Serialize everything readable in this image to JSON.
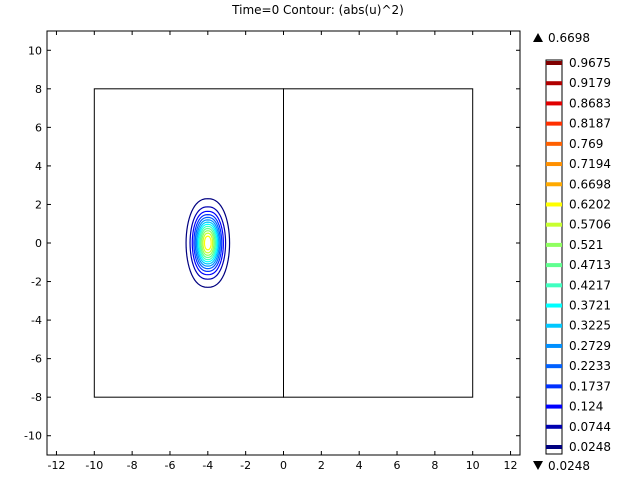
{
  "title": "Time=0   Contour: (abs(u)^2)",
  "max_marker": "0.6698",
  "min_marker": "0.0248",
  "chart_data": {
    "type": "contour",
    "title": "Time=0   Contour: (abs(u)^2)",
    "xlim": [
      -12.5,
      12.5
    ],
    "ylim": [
      -11,
      11
    ],
    "x_ticks": [
      -12,
      -10,
      -8,
      -6,
      -4,
      -2,
      0,
      2,
      4,
      6,
      8,
      10,
      12
    ],
    "y_ticks": [
      10,
      8,
      6,
      4,
      2,
      0,
      -2,
      -4,
      -6,
      -8,
      -10
    ],
    "domain_rectangles": [
      {
        "x": [
          -10,
          0
        ],
        "y": [
          -8,
          8
        ]
      },
      {
        "x": [
          0,
          10
        ],
        "y": [
          -8,
          8
        ]
      }
    ],
    "blob": {
      "center": [
        -4,
        0
      ],
      "half_width": 1.15,
      "half_height": 2.3
    },
    "max_value": 0.6698,
    "min_value": 0.0248,
    "levels": [
      {
        "value": "0.9675",
        "color": "#800000"
      },
      {
        "value": "0.9179",
        "color": "#b00000"
      },
      {
        "value": "0.8683",
        "color": "#e00000"
      },
      {
        "value": "0.8187",
        "color": "#ff3000"
      },
      {
        "value": "0.769",
        "color": "#ff6000"
      },
      {
        "value": "0.7194",
        "color": "#ff9000"
      },
      {
        "value": "0.6698",
        "color": "#ffaa00"
      },
      {
        "value": "0.6202",
        "color": "#ffff00"
      },
      {
        "value": "0.5706",
        "color": "#c8ff30"
      },
      {
        "value": "0.521",
        "color": "#90ff60"
      },
      {
        "value": "0.4713",
        "color": "#60ff90"
      },
      {
        "value": "0.4217",
        "color": "#40ffc0"
      },
      {
        "value": "0.3721",
        "color": "#00ffff"
      },
      {
        "value": "0.3225",
        "color": "#00c8ff"
      },
      {
        "value": "0.2729",
        "color": "#0090ff"
      },
      {
        "value": "0.2233",
        "color": "#0060ff"
      },
      {
        "value": "0.1737",
        "color": "#0030ff"
      },
      {
        "value": "0.124",
        "color": "#0000ff"
      },
      {
        "value": "0.0744",
        "color": "#0000b0"
      },
      {
        "value": "0.0248",
        "color": "#000080"
      }
    ]
  }
}
